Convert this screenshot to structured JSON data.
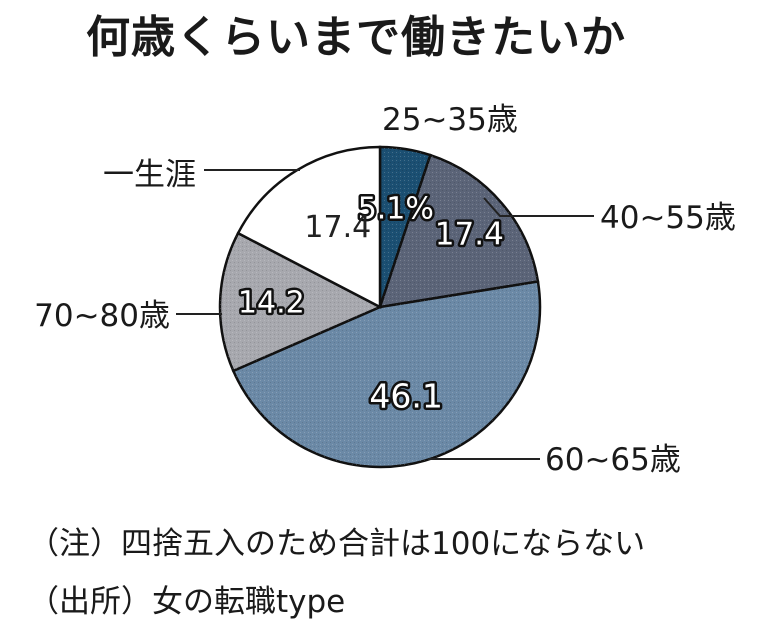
{
  "chart_data": {
    "type": "pie",
    "title": "何歳くらいまで働きたいか",
    "slices": [
      {
        "label": "25~35歳",
        "value": 5.1,
        "value_text": "5.1%",
        "color": "#1b4f72"
      },
      {
        "label": "40~55歳",
        "value": 17.4,
        "value_text": "17.4",
        "color": "#5b6478"
      },
      {
        "label": "60~65歳",
        "value": 46.1,
        "value_text": "46.1",
        "color": "#6b89a6"
      },
      {
        "label": "70~80歳",
        "value": 14.2,
        "value_text": "14.2",
        "color": "#a7a8ae"
      },
      {
        "label": "一生涯",
        "value": 17.4,
        "value_text": "17.4",
        "color": "#ffffff"
      }
    ],
    "start_angle": "12 o'clock",
    "direction": "clockwise",
    "legend": "none"
  },
  "notes": {
    "note": "（注）四捨五入のため合計は100にならない",
    "source": "（出所）女の転職type"
  }
}
